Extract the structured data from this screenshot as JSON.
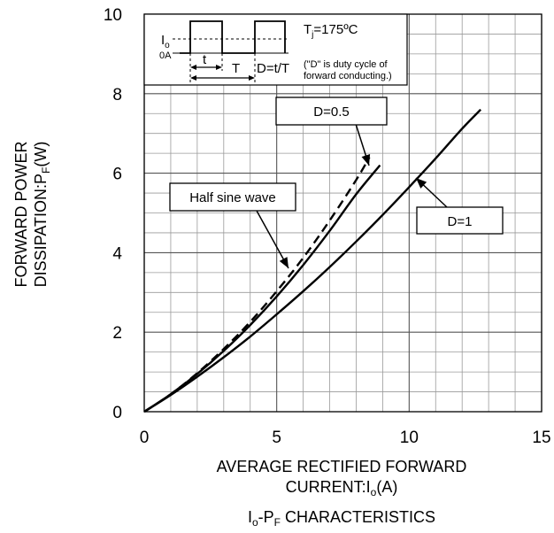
{
  "chart_data": {
    "type": "line",
    "caption": {
      "main": "I",
      "sub1": "o",
      "mid": "-P",
      "sub2": "F",
      "rest": " CHARACTERISTICS"
    },
    "xlabel": {
      "line1": "AVERAGE RECTIFIED FORWARD",
      "line2_pre": "CURRENT:I",
      "line2_sub": "o",
      "line2_post": "(A)"
    },
    "ylabel": {
      "line1": "FORWARD POWER",
      "line2_pre": "DISSIPATION:P",
      "line2_sub": "F",
      "line2_post": "(W)"
    },
    "xlim": [
      0,
      15
    ],
    "ylim": [
      0,
      10
    ],
    "xticks": [
      0,
      5,
      10,
      15
    ],
    "yticks": [
      0,
      2,
      4,
      6,
      8,
      10
    ],
    "grid": true,
    "minor_grid_step_x": 1,
    "minor_grid_step_y": 0.5,
    "series": [
      {
        "name": "D=1",
        "style": "solid",
        "x": [
          0,
          1,
          2,
          3,
          4,
          5,
          6,
          7,
          8,
          9,
          10,
          11,
          12,
          12.7
        ],
        "y": [
          0,
          0.42,
          0.88,
          1.37,
          1.89,
          2.45,
          3.03,
          3.64,
          4.28,
          4.95,
          5.65,
          6.37,
          7.12,
          7.6
        ]
      },
      {
        "name": "D=0.5",
        "style": "solid",
        "x": [
          0,
          1,
          2,
          3,
          4,
          5,
          6,
          7,
          8,
          8.9
        ],
        "y": [
          0,
          0.44,
          0.95,
          1.53,
          2.18,
          2.9,
          3.69,
          4.55,
          5.47,
          6.2
        ]
      },
      {
        "name": "Half sine wave",
        "style": "dashed",
        "x": [
          0,
          1,
          2,
          3,
          4,
          5,
          6,
          7,
          8,
          8.5
        ],
        "y": [
          0,
          0.44,
          0.97,
          1.58,
          2.26,
          3.03,
          3.87,
          4.81,
          5.83,
          6.4
        ]
      }
    ],
    "annotations": [
      {
        "label": "D=0.5",
        "points_to": [
          8.5,
          6.0
        ]
      },
      {
        "label": "Half sine wave",
        "points_to": [
          5.5,
          3.5
        ]
      },
      {
        "label": "D=1",
        "points_to": [
          10.3,
          5.9
        ]
      }
    ],
    "inset": {
      "tj_pre": "T",
      "tj_sub": "j",
      "tj_post": "=175ºC",
      "io_main": "I",
      "io_sub": "o",
      "zero_label": "0A",
      "t_label": "t",
      "T_label": "T",
      "duty_formula": "D=t/T",
      "note_line1": "(\"D\" is duty cycle of",
      "note_line2": "forward conducting.)"
    }
  }
}
